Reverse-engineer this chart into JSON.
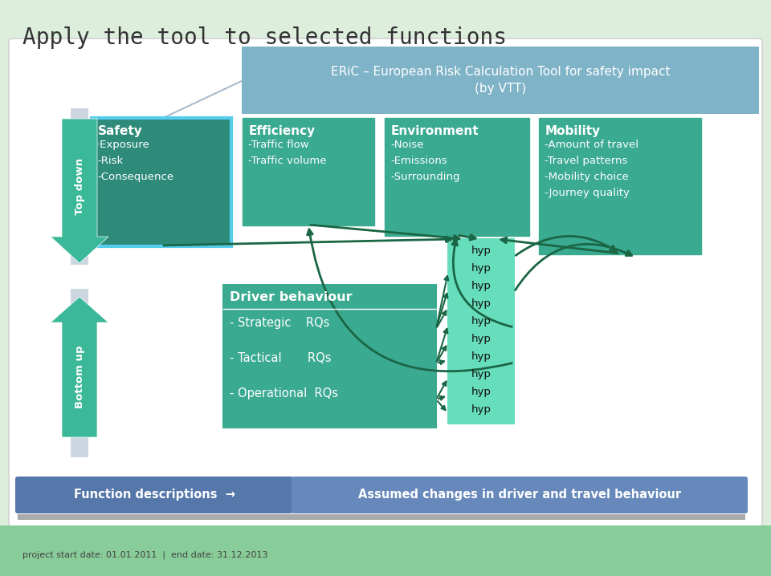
{
  "title": "Apply the tool to selected functions",
  "bg_color": "#ddeedd",
  "eric_text": "ERiC – European Risk Calculation Tool for safety impact\n(by VTT)",
  "eric_bg": "#7fb3c8",
  "top_boxes": [
    {
      "title": "Safety",
      "lines": [
        "·Exposure",
        "-Risk",
        "-Consequence"
      ],
      "bg": "#2e8b7a",
      "border_color": "#55ccee",
      "border_width": 3
    },
    {
      "title": "Efficiency",
      "lines": [
        "-Traffic flow",
        "-Traffic volume"
      ],
      "bg": "#3aaa90",
      "border_color": "#3aaa90",
      "border_width": 1
    },
    {
      "title": "Environment",
      "lines": [
        "-Noise",
        "-Emissions",
        "-Surrounding"
      ],
      "bg": "#3aaa90",
      "border_color": "#3aaa90",
      "border_width": 1
    },
    {
      "title": "Mobility",
      "lines": [
        "-Amount of travel",
        "-Travel patterns",
        "-Mobility choice",
        "-Journey quality"
      ],
      "bg": "#3aaa90",
      "border_color": "#3aaa90",
      "border_width": 1
    }
  ],
  "driver_title": "Driver behaviour",
  "driver_rows": [
    "- Strategic    RQs",
    "- Tactical       RQs",
    "- Operational  RQs"
  ],
  "driver_bg": "#3aaa90",
  "hyp_items": [
    "hyp",
    "hyp",
    "hyp",
    "hyp",
    "hyp",
    "hyp",
    "hyp",
    "hyp",
    "hyp",
    "hyp"
  ],
  "hyp_bg": "#66ddbb",
  "arrow_color": "#1a6645",
  "td_bar_color": "#aabbcc",
  "td_arrow_color": "#3ab898",
  "bu_bar_color": "#aabbcc",
  "bu_arrow_color": "#3ab898",
  "bottom_left_bg": "#5577aa",
  "bottom_right_bg": "#6688bb",
  "bottom_left_text": "Function descriptions  →",
  "bottom_right_text": "Assumed changes in driver and travel behaviour",
  "bottom_text_color": "#ffffff",
  "footer_bg": "#88cc99",
  "footer_text": "project start date: 01.01.2011  |  end date: 31.12.2013",
  "footer_text_color": "#444444",
  "white": "#ffffff",
  "black": "#111111",
  "gray_bar_color": "#aaaaaa"
}
